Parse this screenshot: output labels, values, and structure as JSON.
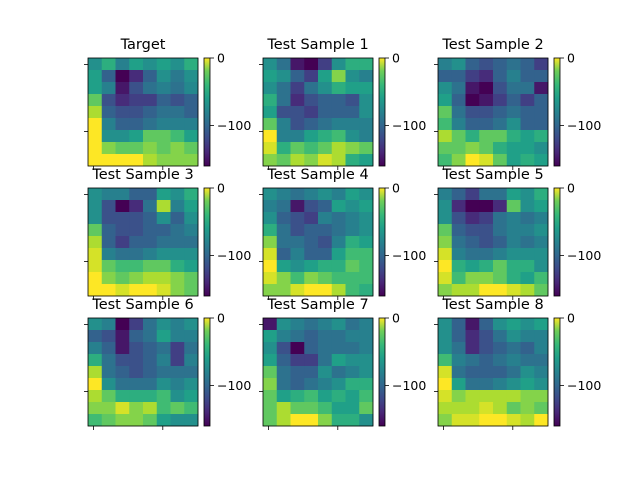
{
  "chart_data": {
    "type": "heatmap",
    "colormap": "viridis",
    "colorbar": {
      "vmin": -160,
      "vmax": 0,
      "ticks": [
        0,
        -100
      ],
      "tick_labels": [
        "0",
        "−100"
      ]
    },
    "panels": [
      {
        "title": "Target",
        "grid": [
          [
            -80,
            -60,
            -90,
            -70,
            -80,
            -70,
            -80,
            -60
          ],
          [
            -70,
            -110,
            -165,
            -140,
            -110,
            -80,
            -95,
            -80
          ],
          [
            -70,
            -90,
            -150,
            -120,
            -100,
            -90,
            -100,
            -85
          ],
          [
            -40,
            -120,
            -140,
            -130,
            -130,
            -110,
            -120,
            -110
          ],
          [
            -20,
            -110,
            -120,
            -120,
            -110,
            -100,
            -100,
            -110
          ],
          [
            0,
            -90,
            -110,
            -110,
            -100,
            -90,
            -90,
            -90
          ],
          [
            0,
            -80,
            -80,
            -70,
            -40,
            -40,
            -50,
            -70
          ],
          [
            5,
            -30,
            -40,
            -40,
            -30,
            -40,
            -30,
            -40
          ],
          [
            10,
            10,
            10,
            5,
            -20,
            -30,
            -30,
            -30
          ]
        ]
      },
      {
        "title": "Test Sample 1",
        "grid": [
          [
            -80,
            -100,
            -150,
            -165,
            -130,
            -80,
            -60,
            -60
          ],
          [
            -70,
            -80,
            -110,
            -130,
            -70,
            -30,
            -80,
            -90
          ],
          [
            -80,
            -100,
            -130,
            -100,
            -80,
            -60,
            -70,
            -70
          ],
          [
            -60,
            -100,
            -140,
            -120,
            -110,
            -110,
            -120,
            -80
          ],
          [
            -70,
            -120,
            -120,
            -130,
            -110,
            -110,
            -110,
            -80
          ],
          [
            -40,
            -90,
            -120,
            -110,
            -100,
            -90,
            -90,
            -90
          ],
          [
            10,
            -90,
            -90,
            -70,
            -60,
            -50,
            -80,
            -90
          ],
          [
            -10,
            -60,
            -40,
            -50,
            -40,
            -20,
            -30,
            -40
          ],
          [
            -30,
            -40,
            -20,
            -30,
            -10,
            -20,
            -60,
            -70
          ]
        ]
      },
      {
        "title": "Test Sample 2",
        "grid": [
          [
            -90,
            -80,
            -110,
            -120,
            -110,
            -100,
            -110,
            -130
          ],
          [
            -110,
            -110,
            -130,
            -140,
            -110,
            -90,
            -110,
            -110
          ],
          [
            -80,
            -100,
            -150,
            -160,
            -120,
            -100,
            -100,
            -150
          ],
          [
            -70,
            -110,
            -160,
            -150,
            -130,
            -110,
            -130,
            -110
          ],
          [
            -40,
            -100,
            -120,
            -120,
            -110,
            -100,
            -110,
            -110
          ],
          [
            -50,
            -90,
            -110,
            -110,
            -100,
            -80,
            -110,
            -110
          ],
          [
            -20,
            -40,
            -60,
            -40,
            -40,
            -60,
            -70,
            -60
          ],
          [
            -40,
            -40,
            -30,
            -40,
            -60,
            -70,
            -70,
            -80
          ],
          [
            -50,
            -30,
            10,
            -10,
            -40,
            -70,
            -60,
            -70
          ]
        ]
      },
      {
        "title": "Test Sample 3",
        "grid": [
          [
            -80,
            -90,
            -90,
            -110,
            -110,
            -70,
            -80,
            -60
          ],
          [
            -80,
            -120,
            -165,
            -140,
            -100,
            -20,
            -90,
            -70
          ],
          [
            -80,
            -120,
            -120,
            -120,
            -110,
            -80,
            -110,
            -80
          ],
          [
            -40,
            -110,
            -120,
            -120,
            -110,
            -110,
            -100,
            -90
          ],
          [
            -20,
            -110,
            -130,
            -110,
            -110,
            -100,
            -100,
            -100
          ],
          [
            -10,
            -90,
            -100,
            -100,
            -90,
            -80,
            -80,
            -80
          ],
          [
            -10,
            -40,
            -50,
            -50,
            -40,
            -40,
            -60,
            -70
          ],
          [
            10,
            -30,
            -40,
            -30,
            -20,
            -20,
            -30,
            -40
          ],
          [
            10,
            10,
            -10,
            10,
            10,
            -10,
            -30,
            -40
          ]
        ]
      },
      {
        "title": "Test Sample 4",
        "grid": [
          [
            -80,
            -90,
            -100,
            -90,
            -80,
            -90,
            -70,
            -80
          ],
          [
            -90,
            -100,
            -150,
            -120,
            -110,
            -70,
            -80,
            -70
          ],
          [
            -80,
            -110,
            -120,
            -130,
            -90,
            -100,
            -90,
            -80
          ],
          [
            -60,
            -100,
            -120,
            -110,
            -110,
            -100,
            -90,
            -80
          ],
          [
            -30,
            -100,
            -100,
            -110,
            -120,
            -90,
            -60,
            -70
          ],
          [
            -10,
            -110,
            -90,
            -110,
            -110,
            -70,
            -50,
            -50
          ],
          [
            10,
            -70,
            -80,
            -70,
            -60,
            -60,
            -40,
            -50
          ],
          [
            -10,
            -30,
            -50,
            -30,
            -40,
            -50,
            -50,
            -50
          ],
          [
            -30,
            -30,
            -10,
            10,
            10,
            -20,
            -50,
            -60
          ]
        ]
      },
      {
        "title": "Test Sample 5",
        "grid": [
          [
            -90,
            -110,
            -130,
            -100,
            -100,
            -70,
            -80,
            -60
          ],
          [
            -80,
            -140,
            -160,
            -160,
            -140,
            -40,
            -80,
            -70
          ],
          [
            -80,
            -120,
            -140,
            -130,
            -100,
            -90,
            -100,
            -90
          ],
          [
            -40,
            -110,
            -120,
            -120,
            -100,
            -90,
            -90,
            -80
          ],
          [
            -30,
            -100,
            -110,
            -120,
            -110,
            -90,
            -100,
            -90
          ],
          [
            -10,
            -90,
            -100,
            -100,
            -90,
            -80,
            -80,
            -80
          ],
          [
            0,
            -60,
            -70,
            -60,
            -40,
            -60,
            -60,
            -80
          ],
          [
            -10,
            -50,
            -30,
            -30,
            -40,
            -60,
            -70,
            -50
          ],
          [
            -30,
            -20,
            -20,
            10,
            0,
            -10,
            -20,
            -40
          ]
        ]
      },
      {
        "title": "Test Sample 6",
        "grid": [
          [
            -80,
            -90,
            -160,
            -130,
            -100,
            -80,
            -90,
            -80
          ],
          [
            -110,
            -120,
            -150,
            -110,
            -100,
            -70,
            -90,
            -90
          ],
          [
            -90,
            -110,
            -150,
            -120,
            -110,
            -100,
            -130,
            -100
          ],
          [
            -60,
            -100,
            -120,
            -120,
            -110,
            -90,
            -130,
            -90
          ],
          [
            -20,
            -100,
            -110,
            -120,
            -110,
            -100,
            -100,
            -100
          ],
          [
            10,
            -80,
            -100,
            -100,
            -100,
            -80,
            -90,
            -80
          ],
          [
            -20,
            -40,
            -60,
            -60,
            -60,
            -50,
            -80,
            -70
          ],
          [
            -30,
            -30,
            -10,
            -30,
            -20,
            -50,
            -40,
            -50
          ],
          [
            -50,
            -40,
            -30,
            -30,
            -40,
            -70,
            -80,
            -80
          ]
        ]
      },
      {
        "title": "Test Sample 7",
        "grid": [
          [
            -150,
            -80,
            -90,
            -100,
            -90,
            -80,
            -100,
            -90
          ],
          [
            -70,
            -90,
            -100,
            -110,
            -100,
            -100,
            -90,
            -90
          ],
          [
            -80,
            -120,
            -160,
            -110,
            -100,
            -100,
            -100,
            -90
          ],
          [
            -70,
            -110,
            -130,
            -130,
            -100,
            -70,
            -80,
            -80
          ],
          [
            -40,
            -100,
            -110,
            -110,
            -80,
            -100,
            -90,
            -80
          ],
          [
            -30,
            -100,
            -110,
            -100,
            -90,
            -80,
            -60,
            -60
          ],
          [
            -40,
            -70,
            -60,
            -50,
            -70,
            -60,
            -70,
            -50
          ],
          [
            -40,
            -20,
            -40,
            -40,
            -50,
            -70,
            -70,
            -40
          ],
          [
            -40,
            -20,
            0,
            0,
            -30,
            -60,
            -60,
            -80
          ]
        ]
      },
      {
        "title": "Test Sample 8",
        "grid": [
          [
            -80,
            -110,
            -150,
            -110,
            -80,
            -70,
            -80,
            -70
          ],
          [
            -80,
            -110,
            -140,
            -120,
            -100,
            -80,
            -90,
            -90
          ],
          [
            -80,
            -100,
            -140,
            -120,
            -110,
            -100,
            -110,
            -90
          ],
          [
            -50,
            -90,
            -100,
            -110,
            -100,
            -90,
            -100,
            -100
          ],
          [
            -10,
            -100,
            -110,
            -110,
            -110,
            -100,
            -80,
            -90
          ],
          [
            10,
            -70,
            -100,
            -100,
            -90,
            -80,
            -70,
            -80
          ],
          [
            -10,
            -30,
            -20,
            -20,
            -20,
            -20,
            -30,
            -30
          ],
          [
            -20,
            -20,
            -20,
            -10,
            -20,
            -40,
            -30,
            -40
          ],
          [
            -30,
            -10,
            -10,
            10,
            0,
            -10,
            -20,
            10
          ]
        ]
      }
    ]
  }
}
